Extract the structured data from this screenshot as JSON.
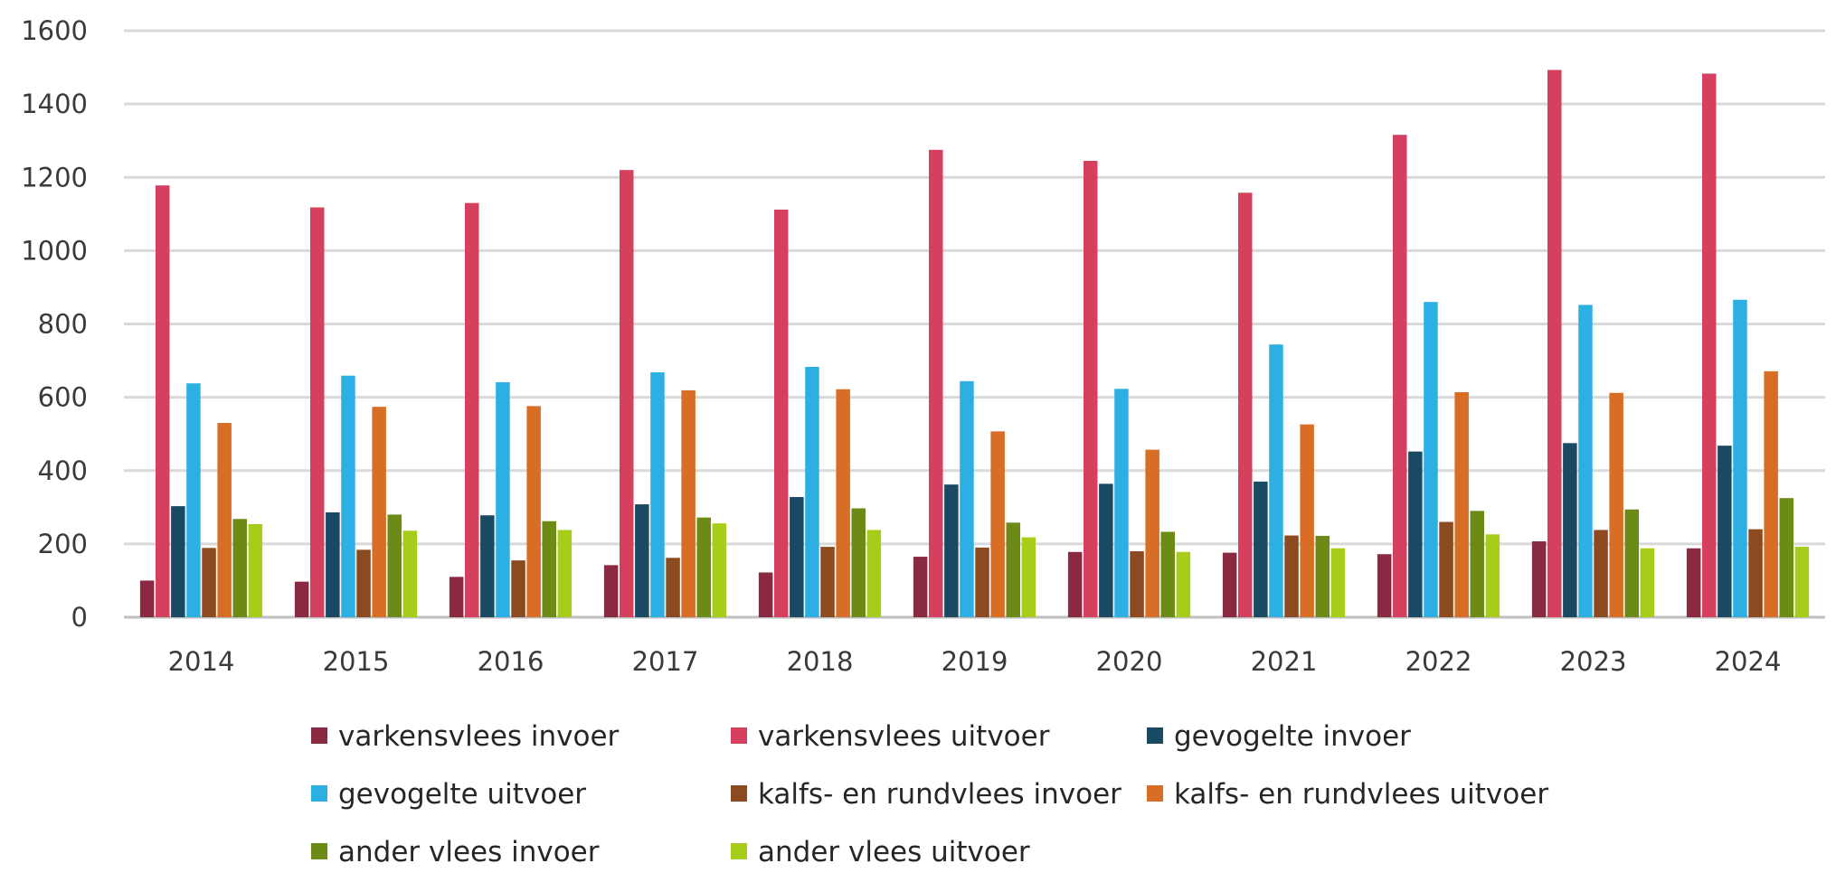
{
  "chart_data": {
    "type": "bar",
    "title": "",
    "xlabel": "",
    "ylabel": "",
    "categories": [
      "2014",
      "2015",
      "2016",
      "2017",
      "2018",
      "2019",
      "2020",
      "2021",
      "2022",
      "2023",
      "2024"
    ],
    "ylim": [
      0,
      1600
    ],
    "yticks": [
      "0",
      "200",
      "400",
      "600",
      "800",
      "1000",
      "1200",
      "1400",
      "1600"
    ],
    "grid": true,
    "legend_position": "bottom",
    "series": [
      {
        "name": "varkensvlees invoer",
        "color": "#8b2942",
        "values": [
          100,
          97,
          110,
          142,
          122,
          165,
          178,
          176,
          172,
          207,
          188
        ]
      },
      {
        "name": "varkensvlees uitvoer",
        "color": "#d6405f",
        "values": [
          1178,
          1118,
          1130,
          1220,
          1112,
          1275,
          1245,
          1158,
          1316,
          1493,
          1483
        ]
      },
      {
        "name": "gevogelte invoer",
        "color": "#1a4a63",
        "values": [
          303,
          286,
          278,
          308,
          328,
          362,
          364,
          370,
          452,
          475,
          468
        ]
      },
      {
        "name": "gevogelte uitvoer",
        "color": "#2cb0e4",
        "values": [
          638,
          659,
          641,
          668,
          683,
          644,
          623,
          744,
          860,
          852,
          866
        ]
      },
      {
        "name": "kalfs- en rundvlees invoer",
        "color": "#8b4a1f",
        "values": [
          189,
          184,
          155,
          162,
          192,
          190,
          180,
          223,
          260,
          238,
          240
        ]
      },
      {
        "name": "kalfs- en rundvlees uitvoer",
        "color": "#d86e25",
        "values": [
          530,
          574,
          576,
          619,
          622,
          507,
          457,
          526,
          614,
          612,
          671
        ]
      },
      {
        "name": "ander vlees invoer",
        "color": "#6b8a16",
        "values": [
          268,
          280,
          262,
          272,
          297,
          258,
          233,
          222,
          290,
          294,
          325
        ]
      },
      {
        "name": "ander vlees uitvoer",
        "color": "#a8cc1a",
        "values": [
          254,
          236,
          238,
          256,
          238,
          218,
          178,
          188,
          226,
          188,
          192
        ]
      }
    ]
  }
}
